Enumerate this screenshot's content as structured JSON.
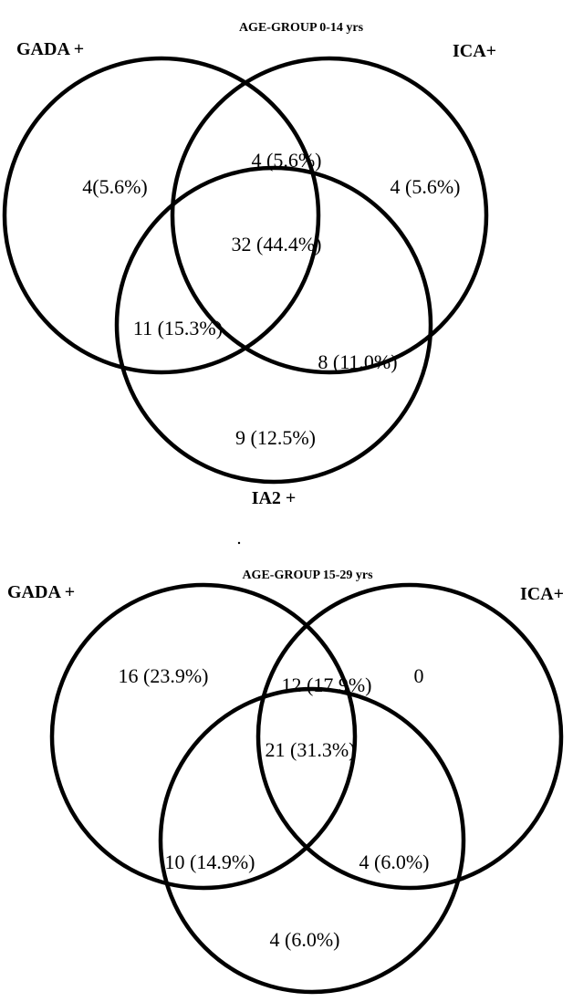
{
  "colors": {
    "stroke": "#000000",
    "background": "#ffffff"
  },
  "diagrams": [
    {
      "title": "AGE-GROUP 0-14 yrs",
      "set_labels": {
        "gada": "GADA +",
        "ica": "ICA+",
        "ia2": "IA2 +"
      },
      "regions": {
        "gada_only": "4(5.6%)",
        "gada_ica": "4 (5.6%)",
        "ica_only": "4 (5.6%)",
        "all_three": "32 (44.4%)",
        "gada_ia2": "11 (15.3%)",
        "ica_ia2": "8 (11.0%)",
        "ia2_only": "9 (12.5%)"
      }
    },
    {
      "title": "AGE-GROUP 15-29 yrs",
      "set_labels": {
        "gada": "GADA +",
        "ica": "ICA+"
      },
      "regions": {
        "gada_only": "16 (23.9%)",
        "gada_ica": "12 (17.9%)",
        "ica_only": "0",
        "all_three": "21 (31.3%)",
        "gada_ia2": "10 (14.9%)",
        "ica_ia2": "4 (6.0%)",
        "ia2_only": "4 (6.0%)"
      }
    }
  ]
}
